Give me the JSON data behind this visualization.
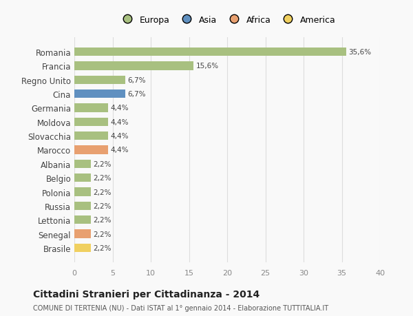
{
  "categories": [
    "Brasile",
    "Senegal",
    "Lettonia",
    "Russia",
    "Polonia",
    "Belgio",
    "Albania",
    "Marocco",
    "Slovacchia",
    "Moldova",
    "Germania",
    "Cina",
    "Regno Unito",
    "Francia",
    "Romania"
  ],
  "values": [
    2.2,
    2.2,
    2.2,
    2.2,
    2.2,
    2.2,
    2.2,
    4.4,
    4.4,
    4.4,
    4.4,
    6.7,
    6.7,
    15.6,
    35.6
  ],
  "colors": [
    "#f0d060",
    "#e8a070",
    "#a8c080",
    "#a8c080",
    "#a8c080",
    "#a8c080",
    "#a8c080",
    "#e8a070",
    "#a8c080",
    "#a8c080",
    "#a8c080",
    "#6090c0",
    "#a8c080",
    "#a8c080",
    "#a8c080"
  ],
  "labels": [
    "2,2%",
    "2,2%",
    "2,2%",
    "2,2%",
    "2,2%",
    "2,2%",
    "2,2%",
    "4,4%",
    "4,4%",
    "4,4%",
    "4,4%",
    "6,7%",
    "6,7%",
    "15,6%",
    "35,6%"
  ],
  "legend": [
    {
      "label": "Europa",
      "color": "#a8c080"
    },
    {
      "label": "Asia",
      "color": "#6090c0"
    },
    {
      "label": "Africa",
      "color": "#e8a070"
    },
    {
      "label": "America",
      "color": "#f0d060"
    }
  ],
  "title": "Cittadini Stranieri per Cittadinanza - 2014",
  "subtitle": "COMUNE DI TERTENIA (NU) - Dati ISTAT al 1° gennaio 2014 - Elaborazione TUTTITALIA.IT",
  "xlim": [
    0,
    40
  ],
  "xticks": [
    0,
    5,
    10,
    15,
    20,
    25,
    30,
    35,
    40
  ],
  "background_color": "#f9f9f9",
  "grid_color": "#dddddd",
  "bar_height": 0.6
}
